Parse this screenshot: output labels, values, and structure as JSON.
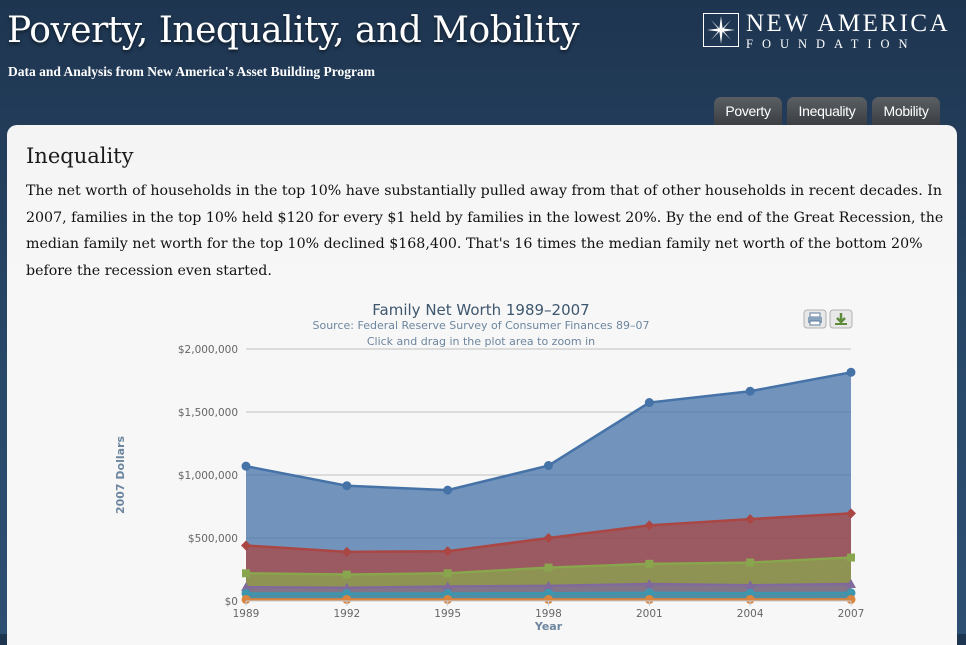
{
  "header": {
    "title": "Poverty, Inequality, and Mobility",
    "subtitle": "Data and Analysis from New America's Asset Building Program",
    "logo": {
      "line1": "NEW AMERICA",
      "line2": "FOUNDATION"
    }
  },
  "tabs": [
    {
      "label": "Poverty"
    },
    {
      "label": "Inequality"
    },
    {
      "label": "Mobility"
    }
  ],
  "section": {
    "heading": "Inequality",
    "body": "The net worth of households in the top 10% have substantially pulled away from that of other households in recent decades. In 2007, families in the top 10% held $120 for every $1 held by families in the lowest 20%. By the end of the Great Recession, the median family net worth for the top 10% declined $168,400. That's 16 times the median family net worth of the bottom 20% before the recession even started."
  },
  "chart_data": {
    "type": "area",
    "title": "Family Net Worth 1989–2007",
    "subtitle": "Source: Federal Reserve Survey of Consumer Finances 89–07",
    "hint": "Click and drag in the plot area to zoom in",
    "xlabel": "Year",
    "ylabel": "2007 Dollars",
    "ylim": [
      0,
      2000000
    ],
    "yticks": [
      "$0",
      "$500,000",
      "$1,000,000",
      "$1,500,000",
      "$2,000,000"
    ],
    "yticks_values": [
      0,
      500000,
      1000000,
      1500000,
      2000000
    ],
    "x": [
      "1989",
      "1992",
      "1995",
      "1998",
      "2001",
      "2004",
      "2007"
    ],
    "stacked": false,
    "grid": true,
    "series": [
      {
        "values": [
          1070000,
          915000,
          880000,
          1075000,
          1575000,
          1665000,
          1815000
        ],
        "color": "#4572A7",
        "marker": "circle"
      },
      {
        "values": [
          440000,
          390000,
          395000,
          500000,
          600000,
          650000,
          695000
        ],
        "color": "#AA4643",
        "marker": "diamond"
      },
      {
        "values": [
          220000,
          210000,
          220000,
          265000,
          295000,
          305000,
          345000
        ],
        "color": "#89A54E",
        "marker": "square"
      },
      {
        "values": [
          110000,
          105000,
          115000,
          120000,
          135000,
          125000,
          135000
        ],
        "color": "#80699B",
        "marker": "triangle"
      },
      {
        "values": [
          60000,
          60000,
          60000,
          62000,
          65000,
          62000,
          64000
        ],
        "color": "#3D96AE",
        "marker": "circle"
      },
      {
        "values": [
          12000,
          12000,
          12000,
          12000,
          12000,
          12000,
          12000
        ],
        "color": "#DB843D",
        "marker": "circle"
      }
    ],
    "buttons": [
      {
        "icon": "printer-icon"
      },
      {
        "icon": "download-icon"
      }
    ]
  }
}
